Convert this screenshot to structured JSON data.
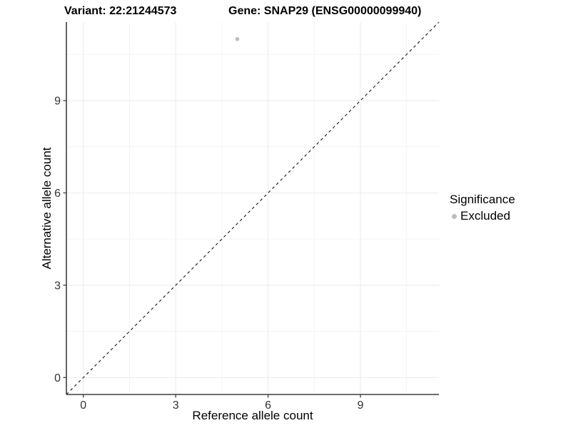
{
  "chart_data": {
    "type": "scatter",
    "title_left": "Variant: 22:21244573",
    "title_right": "Gene: SNAP29 (ENSG00000099940)",
    "xlabel": "Reference allele count",
    "ylabel": "Alternative allele count",
    "xlim": [
      -0.55,
      11.55
    ],
    "ylim": [
      -0.55,
      11.55
    ],
    "x_ticks": [
      0,
      3,
      6,
      9
    ],
    "y_ticks": [
      0,
      3,
      6,
      9
    ],
    "x_minor_gridlines": [
      1.5,
      4.5,
      7.5,
      10.5
    ],
    "y_minor_gridlines": [
      1.5,
      4.5,
      7.5,
      10.5
    ],
    "grid": "major and minor, very light gray on white",
    "points": [
      {
        "x": 5,
        "y": 11,
        "series": "Excluded"
      }
    ],
    "identity_line": {
      "style": "dashed",
      "from": [
        -0.55,
        -0.55
      ],
      "to": [
        11.55,
        11.55
      ],
      "meaning": "y = x reference line"
    },
    "legend": {
      "title": "Significance",
      "position": "right",
      "entries": [
        {
          "label": "Excluded",
          "color": "#bdbdbd"
        }
      ]
    },
    "colors": {
      "point_excluded": "#bdbdbd",
      "axis_line": "#3d3d3d",
      "tick_mark": "#3d3d3d",
      "tick_label": "#333333",
      "grid_major": "#ebebeb",
      "grid_minor": "#f4f4f4",
      "dashed_line": "#000000",
      "background": "#ffffff"
    }
  }
}
